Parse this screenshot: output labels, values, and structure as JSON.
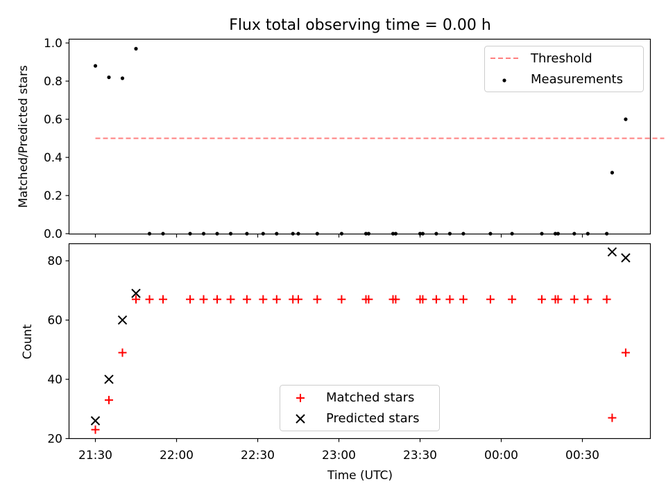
{
  "figure": {
    "title": "Flux total observing time = 0.00 h",
    "xlabel": "Time (UTC)"
  },
  "colors": {
    "threshold": "#ff7f7f",
    "measurement": "#000000",
    "matched": "#ff0000",
    "predicted": "#000000"
  },
  "chart_data": [
    {
      "type": "scatter",
      "panel": "top",
      "ylabel": "Matched/Predicted stars",
      "xlim": [
        "21:30",
        "00:50"
      ],
      "ylim": [
        0,
        1.0
      ],
      "x_tick_labels_shown": false,
      "y_ticks": [
        0.0,
        0.2,
        0.4,
        0.6,
        0.8,
        1.0
      ],
      "y_tick_labels": [
        "0.0",
        "0.2",
        "0.4",
        "0.6",
        "0.8",
        "1.0"
      ],
      "legend": {
        "placement": "top-right",
        "entries": [
          "Threshold",
          "Measurements"
        ]
      },
      "threshold": {
        "name": "Threshold",
        "value": 0.5,
        "x_range": [
          "21:30",
          "00:50"
        ],
        "style": "dashed"
      },
      "series": [
        {
          "name": "Measurements",
          "x": [
            "21:30",
            "21:35",
            "21:40",
            "21:45",
            "21:50",
            "21:55",
            "22:05",
            "22:10",
            "22:15",
            "22:20",
            "22:26",
            "22:32",
            "22:37",
            "22:43",
            "22:45",
            "22:52",
            "23:01",
            "23:10",
            "23:11",
            "23:20",
            "23:21",
            "23:30",
            "23:31",
            "23:36",
            "23:41",
            "23:46",
            "23:56",
            "00:04",
            "00:15",
            "00:20",
            "00:21",
            "00:27",
            "00:32",
            "00:39",
            "00:41",
            "00:46"
          ],
          "y": [
            0.88,
            0.82,
            0.815,
            0.97,
            0,
            0,
            0,
            0,
            0,
            0,
            0,
            0,
            0,
            0,
            0,
            0,
            0,
            0,
            0,
            0,
            0,
            0,
            0,
            0,
            0,
            0,
            0,
            0,
            0,
            0,
            0,
            0,
            0,
            0,
            0.32,
            0.6
          ]
        }
      ]
    },
    {
      "type": "scatter",
      "panel": "bottom",
      "ylabel": "Count",
      "xlim": [
        "21:30",
        "00:50"
      ],
      "ylim": [
        20,
        86
      ],
      "y_ticks": [
        20,
        40,
        60,
        80
      ],
      "y_tick_labels": [
        "20",
        "40",
        "60",
        "80"
      ],
      "x_ticks": [
        "21:30",
        "22:00",
        "22:30",
        "23:00",
        "23:30",
        "00:00",
        "00:30"
      ],
      "x_tick_labels": [
        "21:30",
        "22:00",
        "22:30",
        "23:00",
        "23:30",
        "00:00",
        "00:30"
      ],
      "legend": {
        "placement": "lower-center",
        "entries": [
          "Matched stars",
          "Predicted stars"
        ]
      },
      "series": [
        {
          "name": "Matched stars",
          "marker": "plus",
          "x": [
            "21:30",
            "21:35",
            "21:40",
            "21:45",
            "21:50",
            "21:55",
            "22:05",
            "22:10",
            "22:15",
            "22:20",
            "22:26",
            "22:32",
            "22:37",
            "22:43",
            "22:45",
            "22:52",
            "23:01",
            "23:10",
            "23:11",
            "23:20",
            "23:21",
            "23:30",
            "23:31",
            "23:36",
            "23:41",
            "23:46",
            "23:56",
            "00:04",
            "00:15",
            "00:20",
            "00:21",
            "00:27",
            "00:32",
            "00:39",
            "00:41",
            "00:46"
          ],
          "y": [
            23,
            33,
            49,
            67,
            67,
            67,
            67,
            67,
            67,
            67,
            67,
            67,
            67,
            67,
            67,
            67,
            67,
            67,
            67,
            67,
            67,
            67,
            67,
            67,
            67,
            67,
            67,
            67,
            67,
            67,
            67,
            67,
            67,
            67,
            27,
            49
          ]
        },
        {
          "name": "Predicted stars",
          "marker": "x",
          "x": [
            "21:30",
            "21:35",
            "21:40",
            "21:45",
            "00:41",
            "00:46"
          ],
          "y": [
            26,
            40,
            60,
            69,
            83,
            81
          ]
        }
      ]
    }
  ]
}
